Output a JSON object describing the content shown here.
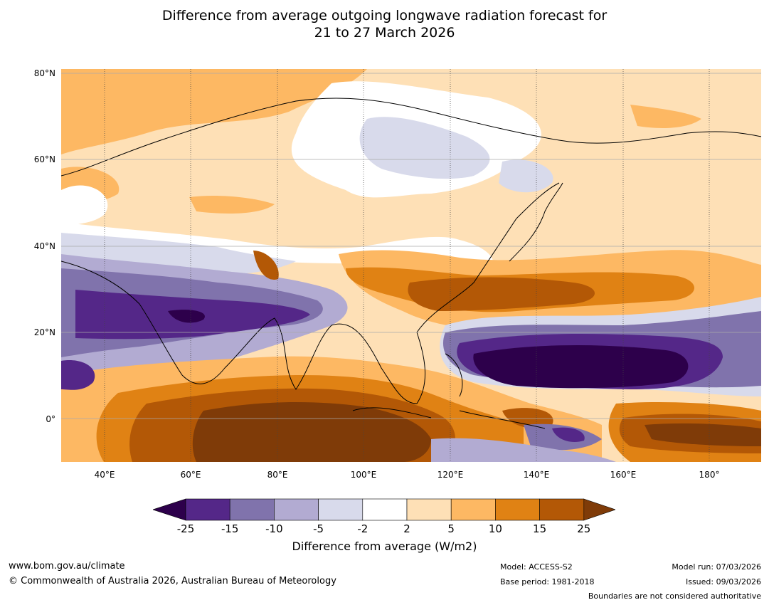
{
  "title_line1": "Difference from average outgoing longwave radiation forecast for",
  "title_line2": "21 to 27 March 2026",
  "latitude_labels": [
    "80°N",
    "60°N",
    "40°N",
    "20°N",
    "0°"
  ],
  "longitude_labels": [
    "40°E",
    "60°E",
    "80°E",
    "100°E",
    "120°E",
    "140°E",
    "160°E",
    "180°"
  ],
  "colorbar": {
    "ticks": [
      "-25",
      "-15",
      "-10",
      "-5",
      "-2",
      "2",
      "5",
      "10",
      "15",
      "25"
    ],
    "colors": [
      "#2d004b",
      "#542788",
      "#8073ac",
      "#b2abd2",
      "#d8daeb",
      "#ffffff",
      "#fee0b6",
      "#fdb863",
      "#e08214",
      "#b35806",
      "#7f3b08"
    ],
    "label": "Difference from average (W/m2)"
  },
  "footer": {
    "website": "www.bom.gov.au/climate",
    "copyright": "© Commonwealth of Australia 2026, Australian Bureau of Meteorology",
    "model": "Model: ACCESS-S2",
    "base_period": "Base period: 1981-2018",
    "model_run": "Model run: 07/03/2026",
    "issued": "Issued: 09/03/2026",
    "disclaimer": "Boundaries are not considered authoritative"
  }
}
